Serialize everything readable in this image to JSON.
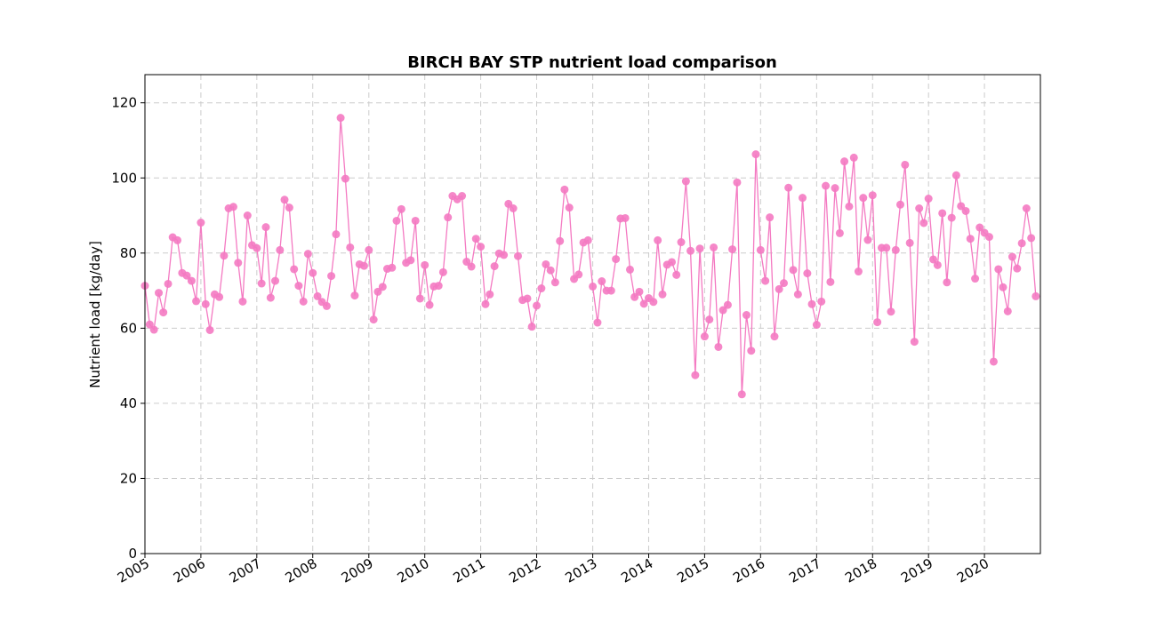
{
  "chart_data": {
    "type": "line",
    "title": "BIRCH BAY STP nutrient load comparison",
    "xlabel": "",
    "ylabel": "Nutrient load [kg/day]",
    "xlim": [
      "2005-01-01",
      "2020-12-31"
    ],
    "ylim": [
      0,
      127.5
    ],
    "x_ticks": [
      "2005",
      "2006",
      "2007",
      "2008",
      "2009",
      "2010",
      "2011",
      "2012",
      "2013",
      "2014",
      "2015",
      "2016",
      "2017",
      "2018",
      "2019",
      "2020"
    ],
    "y_ticks": [
      0,
      20,
      40,
      60,
      80,
      100,
      120
    ],
    "grid": true,
    "legend": "none",
    "colors": {
      "series": "#f47ac2",
      "grid": "#cccccc"
    },
    "series": [
      {
        "x_start": "2005-01",
        "frequency": "monthly",
        "values": [
          71.3,
          61.0,
          59.6,
          69.4,
          64.2,
          71.8,
          84.2,
          83.4,
          74.7,
          74.0,
          72.6,
          67.2,
          88.1,
          66.4,
          59.5,
          69.0,
          68.3,
          79.3,
          91.9,
          92.3,
          77.4,
          67.1,
          90.0,
          82.1,
          81.3,
          71.9,
          86.9,
          68.1,
          72.6,
          80.8,
          94.2,
          92.1,
          75.7,
          71.3,
          67.1,
          79.8,
          74.7,
          68.5,
          67.0,
          65.9,
          73.9,
          85.0,
          116.0,
          99.8,
          81.5,
          68.7,
          77.0,
          76.6,
          80.8,
          62.3,
          69.7,
          71.0,
          75.8,
          76.1,
          88.6,
          91.7,
          77.4,
          78.1,
          88.6,
          67.9,
          76.8,
          66.2,
          71.1,
          71.3,
          74.9,
          89.5,
          95.2,
          94.3,
          95.2,
          77.7,
          76.4,
          83.8,
          81.7,
          66.4,
          69.0,
          76.5,
          79.9,
          79.5,
          93.1,
          91.9,
          79.2,
          67.5,
          67.9,
          60.4,
          66.0,
          70.6,
          77.0,
          75.4,
          72.2,
          83.2,
          96.9,
          92.1,
          73.1,
          74.3,
          82.8,
          83.4,
          71.1,
          61.5,
          72.5,
          70.0,
          70.0,
          78.4,
          89.2,
          89.3,
          75.6,
          68.3,
          69.7,
          66.5,
          68.0,
          67.0,
          83.4,
          69.0,
          76.9,
          77.6,
          74.2,
          82.9,
          99.1,
          80.6,
          47.5,
          81.2,
          57.8,
          62.3,
          81.5,
          55.0,
          64.8,
          66.2,
          81.0,
          98.8,
          42.4,
          63.5,
          54.0,
          106.3,
          80.8,
          72.6,
          89.5,
          57.8,
          70.4,
          72.0,
          97.4,
          75.5,
          69.0,
          94.7,
          74.6,
          66.4,
          60.9,
          67.1,
          97.9,
          72.3,
          97.3,
          85.3,
          104.4,
          92.4,
          105.4,
          75.1,
          94.7,
          83.5,
          95.4,
          61.6,
          81.4,
          81.4,
          64.4,
          80.8,
          92.9,
          103.5,
          82.7,
          56.4,
          91.9,
          88.0,
          94.5,
          78.3,
          76.8,
          90.6,
          72.2,
          89.4,
          100.7,
          92.5,
          91.2,
          83.8,
          73.2,
          86.8,
          85.4,
          84.3,
          51.1,
          75.7,
          70.9,
          64.5,
          79.0,
          75.9,
          82.6,
          91.9,
          84.0,
          68.5
        ]
      }
    ]
  }
}
